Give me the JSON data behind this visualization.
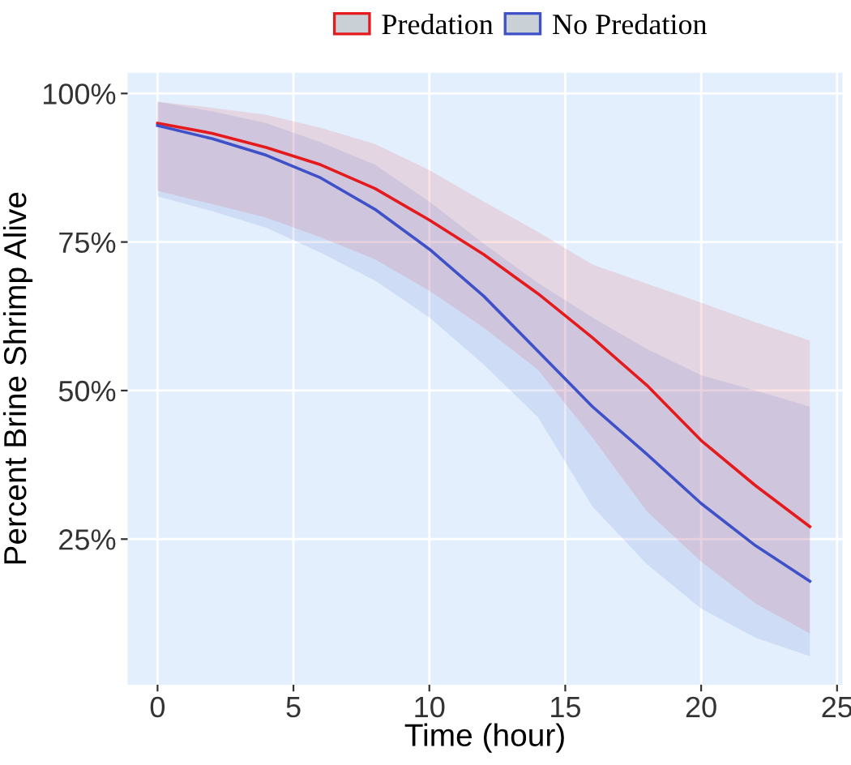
{
  "chart_data": {
    "type": "line",
    "xlabel": "Time (hour)",
    "ylabel": "Percent Brine Shrimp Alive",
    "x": [
      0,
      2,
      4,
      6,
      8,
      10,
      12,
      14,
      16,
      18,
      20,
      22,
      24
    ],
    "series": [
      {
        "name": "Predation",
        "color": "#e41a1c",
        "values": [
          95.0,
          93.3,
          90.9,
          88.0,
          84.0,
          78.7,
          72.9,
          66.3,
          58.9,
          50.9,
          41.6,
          34.0,
          27.1
        ],
        "lower": [
          83.6,
          81.4,
          79.1,
          75.8,
          72.1,
          66.8,
          60.6,
          53.5,
          42.1,
          29.7,
          21.2,
          14.2,
          9.1
        ],
        "upper": [
          98.6,
          97.6,
          96.4,
          94.2,
          91.5,
          87.1,
          81.8,
          76.7,
          71.2,
          68.0,
          64.8,
          61.5,
          58.4
        ]
      },
      {
        "name": "No Predation",
        "color": "#3f51c8",
        "values": [
          94.6,
          92.4,
          89.6,
          85.8,
          80.5,
          73.8,
          65.9,
          56.6,
          47.3,
          39.3,
          31.0,
          23.9,
          17.9
        ],
        "lower": [
          82.7,
          80.2,
          77.4,
          73.2,
          68.5,
          62.3,
          54.4,
          45.5,
          30.5,
          20.8,
          13.3,
          8.4,
          5.3
        ],
        "upper": [
          98.6,
          97.0,
          95.0,
          91.8,
          88.0,
          81.8,
          74.7,
          68.1,
          62.3,
          57.0,
          52.6,
          50.0,
          47.3
        ]
      }
    ],
    "xlim": [
      -1.1,
      25.2
    ],
    "ylim": [
      0.5,
      103.5
    ],
    "xticks": [
      0,
      5,
      10,
      15,
      20,
      25
    ],
    "yticks": [
      {
        "value": 25,
        "label": "25%"
      },
      {
        "value": 50,
        "label": "50%"
      },
      {
        "value": 75,
        "label": "75%"
      },
      {
        "value": 100,
        "label": "100%"
      }
    ],
    "grid": true,
    "legend": "top",
    "marker": "none",
    "line_style": "solid"
  }
}
